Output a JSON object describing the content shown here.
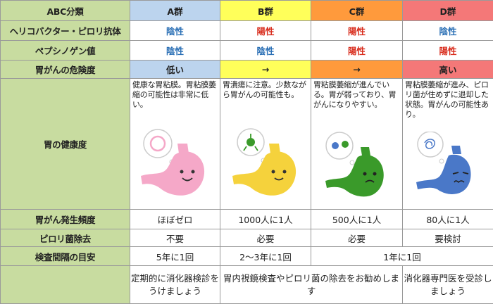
{
  "header": {
    "corner": "ABC分類",
    "groups": [
      "A群",
      "B群",
      "C群",
      "D群"
    ]
  },
  "rows": {
    "hp": {
      "label": "ヘリコバクター・ピロリ抗体",
      "values": [
        "陰性",
        "陽性",
        "陽性",
        "陰性"
      ]
    },
    "pg": {
      "label": "ペプシノゲン値",
      "values": [
        "陰性",
        "陰性",
        "陽性",
        "陽性"
      ]
    },
    "risk": {
      "label": "胃がんの危険度",
      "values": [
        "低い",
        "→",
        "→",
        "高い"
      ]
    },
    "health": {
      "label": "胃の健康度",
      "descriptions": [
        "健康な胃粘膜。胃粘膜萎縮の可能性は非常に低い。",
        "胃潰瘍に注意。少数ながら胃がんの可能性も。",
        "胃粘膜萎縮が進んでいる。胃が弱っており、胃がんになりやすい。",
        "胃粘膜萎縮が進み、ピロリ菌が住めずに退却した状態。胃がんの可能性あり。"
      ]
    },
    "freq": {
      "label": "胃がん発生頻度",
      "values": [
        "ほぼゼロ",
        "1000人に1人",
        "500人に1人",
        "80人に1人"
      ]
    },
    "erad": {
      "label": "ピロリ菌除去",
      "values": [
        "不要",
        "必要",
        "必要",
        "要検討"
      ]
    },
    "interval": {
      "label": "検査間隔の目安",
      "values": [
        "5年に1回",
        "2～3年に1回",
        "1年に1回"
      ]
    },
    "advice": {
      "values": [
        "定期的に消化器検診をうけましょう",
        "胃内視鏡検査やピロリ菌の除去をお勧めします",
        "消化器専門医を受診しましょう"
      ]
    }
  },
  "colors": {
    "group_a": "#bcd4ee",
    "group_b": "#ffff5a",
    "group_c": "#ff9a3c",
    "group_d": "#f47878",
    "row_header": "#c8dca0",
    "negative_text": "#2a6fb5",
    "positive_text": "#d82c1c",
    "stomach_a": "#f5a8c8",
    "stomach_b": "#f5d23c",
    "stomach_c": "#3a9a2a",
    "stomach_d": "#4a78c8"
  },
  "icons": [
    "happy-stomach-icon",
    "bacteria-stomach-icon",
    "worried-stomach-icon",
    "atrophied-stomach-icon"
  ]
}
